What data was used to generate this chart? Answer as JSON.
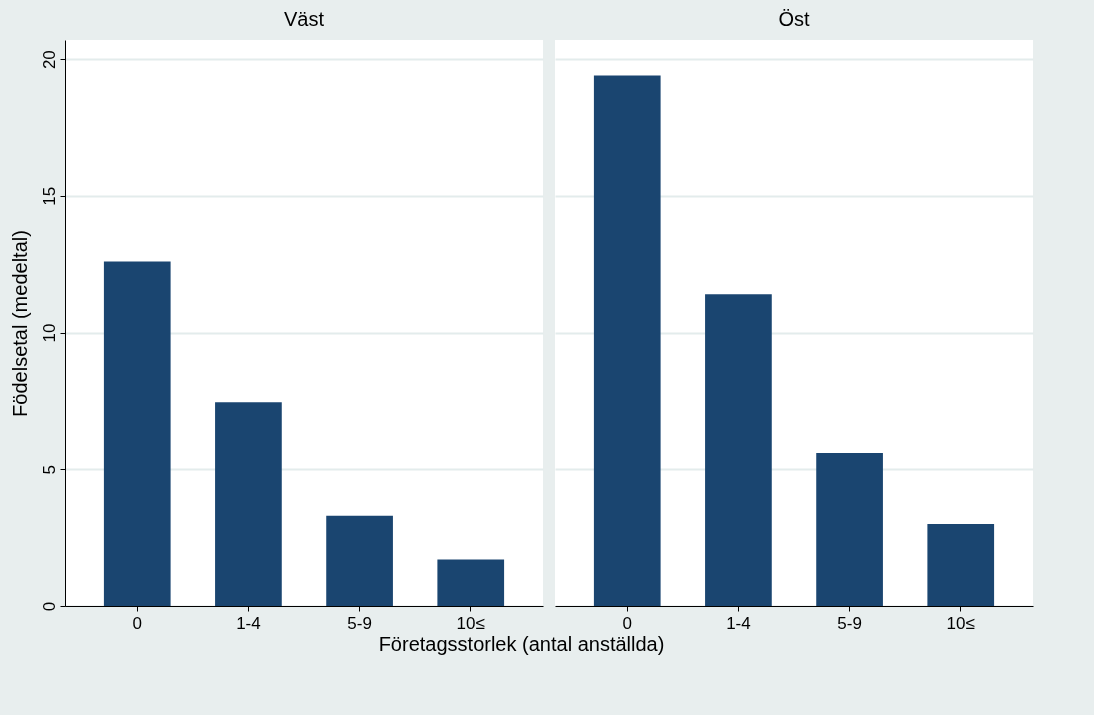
{
  "chart_data": [
    {
      "type": "bar",
      "title": "Väst",
      "ylabel": "Födelsetal (medeltal)",
      "xlabel": "Företagsstorlek (antal anställda)",
      "categories": [
        "0",
        "1-4",
        "5-9",
        "10≤"
      ],
      "values": [
        12.6,
        7.45,
        3.3,
        1.7
      ],
      "color": "#1a4570",
      "ylim": [
        0,
        20.7
      ],
      "yticks": [
        0,
        5,
        10,
        15,
        20
      ],
      "grid": "y"
    },
    {
      "type": "bar",
      "title": "Öst",
      "categories": [
        "0",
        "1-4",
        "5-9",
        "10≤"
      ],
      "values": [
        19.4,
        11.4,
        5.6,
        3.0
      ],
      "color": "#1a4570",
      "ylim": [
        0,
        20.7
      ],
      "yticks": [
        0,
        5,
        10,
        15,
        20
      ],
      "grid": "y",
      "tick_labels": "x"
    }
  ]
}
